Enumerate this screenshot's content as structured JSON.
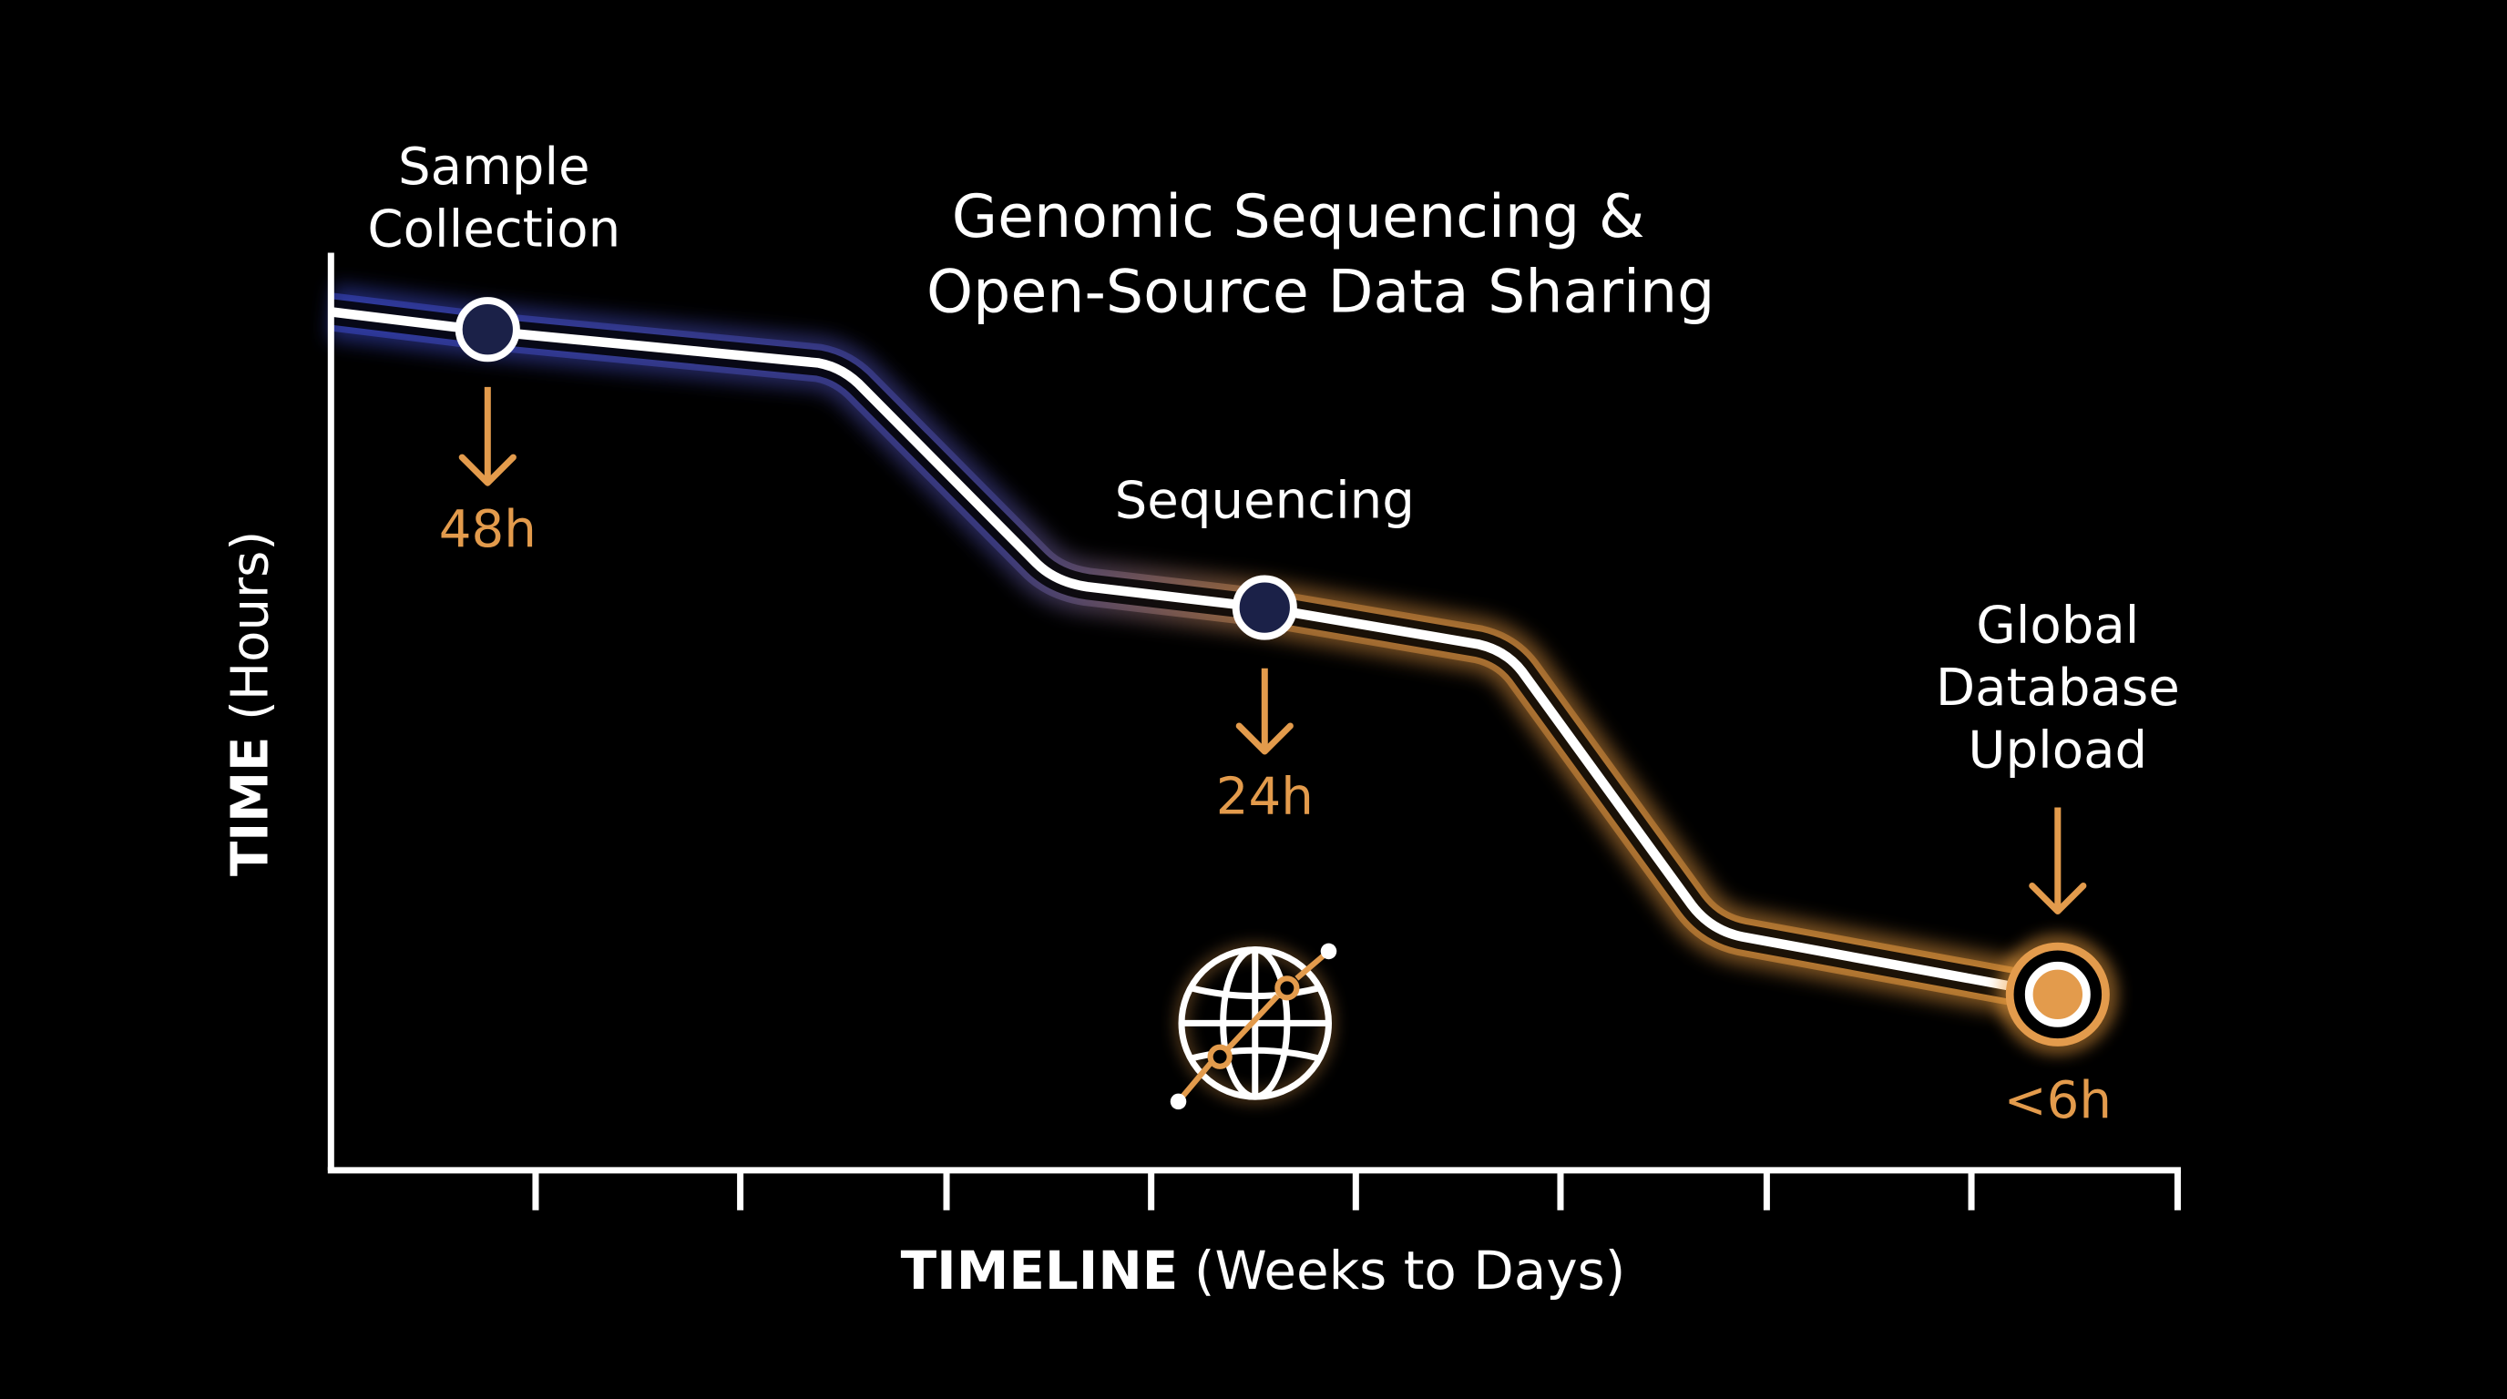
{
  "title": [
    "Genomic Sequencing &",
    "Open-Source Data Sharing"
  ],
  "y_axis": {
    "bold": "TIME",
    "rest": "(Hours)"
  },
  "x_axis": {
    "bold": "TIMELINE",
    "rest": "(Weeks to Days)"
  },
  "stages": [
    {
      "label": [
        "Sample",
        "Collection"
      ],
      "time": "48h"
    },
    {
      "label": [
        "Sequencing"
      ],
      "time": "24h"
    },
    {
      "label": [
        "Global",
        "Database",
        "Upload"
      ],
      "time": "<6h"
    }
  ]
}
